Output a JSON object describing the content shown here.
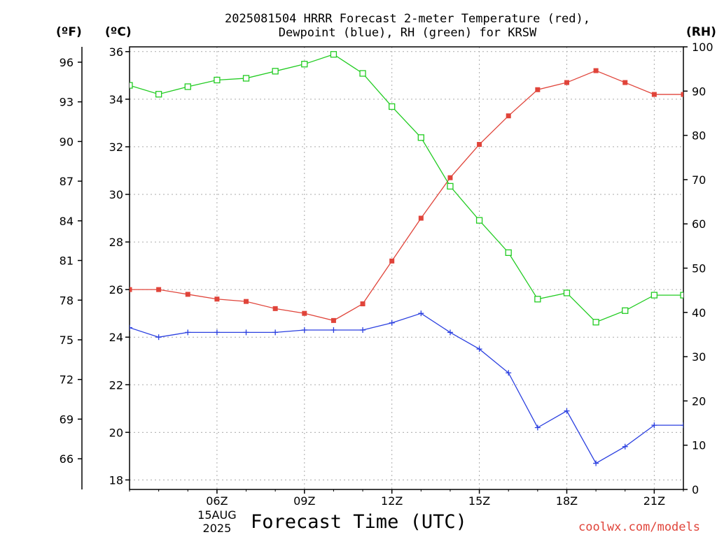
{
  "chart_data": {
    "type": "line",
    "title_lines": [
      "2025081504 HRRR Forecast 2-meter Temperature (red),",
      "Dewpoint (blue), RH (green) for KRSW"
    ],
    "xlabel": "Forecast Time (UTC)",
    "unit_labels": {
      "fahrenheit": "(ºF)",
      "celsius": "(ºC)",
      "rh": "(RH)"
    },
    "source": "coolwx.com/models",
    "x_hours_utc": [
      3,
      4,
      5,
      6,
      7,
      8,
      9,
      10,
      11,
      12,
      13,
      14,
      15,
      16,
      17,
      18,
      19,
      20,
      21,
      22
    ],
    "x_range": [
      3,
      22
    ],
    "x_tick_values": [
      6,
      9,
      12,
      15,
      18,
      21
    ],
    "x_tick_labels": [
      "06Z",
      "09Z",
      "12Z",
      "15Z",
      "18Z",
      "21Z"
    ],
    "x_date_label": [
      "15AUG",
      "2025"
    ],
    "y_celsius_range": [
      17.6,
      36.2
    ],
    "y_celsius_ticks": [
      18,
      20,
      22,
      24,
      26,
      28,
      30,
      32,
      34,
      36
    ],
    "y_fahrenheit_ticks": [
      66,
      69,
      72,
      75,
      78,
      81,
      84,
      87,
      90,
      93,
      96
    ],
    "y_rh_range": [
      0,
      100
    ],
    "y_rh_ticks": [
      0,
      10,
      20,
      30,
      40,
      50,
      60,
      70,
      80,
      90,
      100
    ],
    "grid": true,
    "series": [
      {
        "name": "Temperature",
        "axis": "celsius",
        "color": "#e0443a",
        "marker": "filled-square",
        "values": [
          26.0,
          26.0,
          25.8,
          25.6,
          25.5,
          25.2,
          25.0,
          24.7,
          25.4,
          27.2,
          29.0,
          30.7,
          32.1,
          33.3,
          34.4,
          34.7,
          35.2,
          34.7,
          34.2,
          34.2
        ]
      },
      {
        "name": "Dewpoint",
        "axis": "celsius",
        "color": "#2a3fe0",
        "marker": "plus",
        "values": [
          24.4,
          24.0,
          24.2,
          24.2,
          24.2,
          24.2,
          24.3,
          24.3,
          24.3,
          24.6,
          25.0,
          24.2,
          23.5,
          22.5,
          20.2,
          20.9,
          18.7,
          19.4,
          20.3,
          20.3
        ]
      },
      {
        "name": "RH",
        "axis": "rh",
        "color": "#22cc22",
        "marker": "open-square",
        "values": [
          91.3,
          89.3,
          91.0,
          92.5,
          92.9,
          94.5,
          96.1,
          98.3,
          94.0,
          86.5,
          79.5,
          68.5,
          60.8,
          53.5,
          43.0,
          44.4,
          37.8,
          40.4,
          43.9,
          43.9
        ]
      }
    ]
  }
}
